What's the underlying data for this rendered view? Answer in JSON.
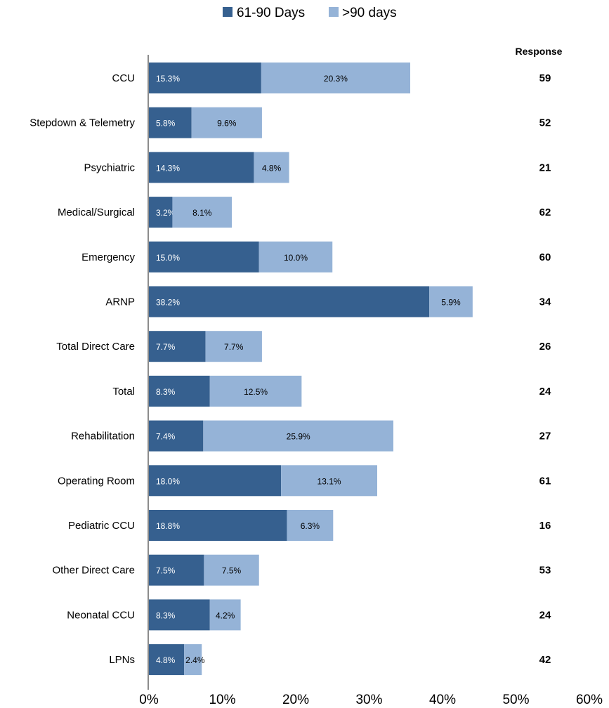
{
  "chart_data": {
    "type": "bar",
    "stacked": true,
    "orientation": "horizontal",
    "categories": [
      "CCU",
      "Stepdown & Telemetry",
      "Psychiatric",
      "Medical/Surgical",
      "Emergency",
      "ARNP",
      "Total Direct Care",
      "Total",
      "Rehabilitation",
      "Operating Room",
      "Pediatric CCU",
      "Other Direct Care",
      "Neonatal CCU",
      "LPNs"
    ],
    "series": [
      {
        "name": "61-90 Days",
        "color": "#36608F",
        "values": [
          15.3,
          5.8,
          14.3,
          3.2,
          15.0,
          38.2,
          7.7,
          8.3,
          7.4,
          18.0,
          18.8,
          7.5,
          8.3,
          4.8
        ],
        "labels": [
          "15.3%",
          "5.8%",
          "14.3%",
          "3.2%",
          "15.0%",
          "38.2%",
          "7.7%",
          "8.3%",
          "7.4%",
          "18.0%",
          "18.8%",
          "7.5%",
          "8.3%",
          "4.8%"
        ]
      },
      {
        "name": ">90 days",
        "color": "#95B3D7",
        "values": [
          20.3,
          9.6,
          4.8,
          8.1,
          10.0,
          5.9,
          7.7,
          12.5,
          25.9,
          13.1,
          6.3,
          7.5,
          4.2,
          2.4
        ],
        "labels": [
          "20.3%",
          "9.6%",
          "4.8%",
          "8.1%",
          "10.0%",
          "5.9%",
          "7.7%",
          "12.5%",
          "25.9%",
          "13.1%",
          "6.3%",
          "7.5%",
          "4.2%",
          "2.4%"
        ]
      }
    ],
    "xlim": [
      0,
      60
    ],
    "x_ticks": [
      "0%",
      "10%",
      "20%",
      "30%",
      "40%",
      "50%",
      "60%"
    ],
    "legend_position": "top",
    "grid": false,
    "response_header": "Response",
    "response_values": [
      "59",
      "52",
      "21",
      "62",
      "60",
      "34",
      "26",
      "24",
      "27",
      "61",
      "16",
      "53",
      "24",
      "42"
    ]
  }
}
